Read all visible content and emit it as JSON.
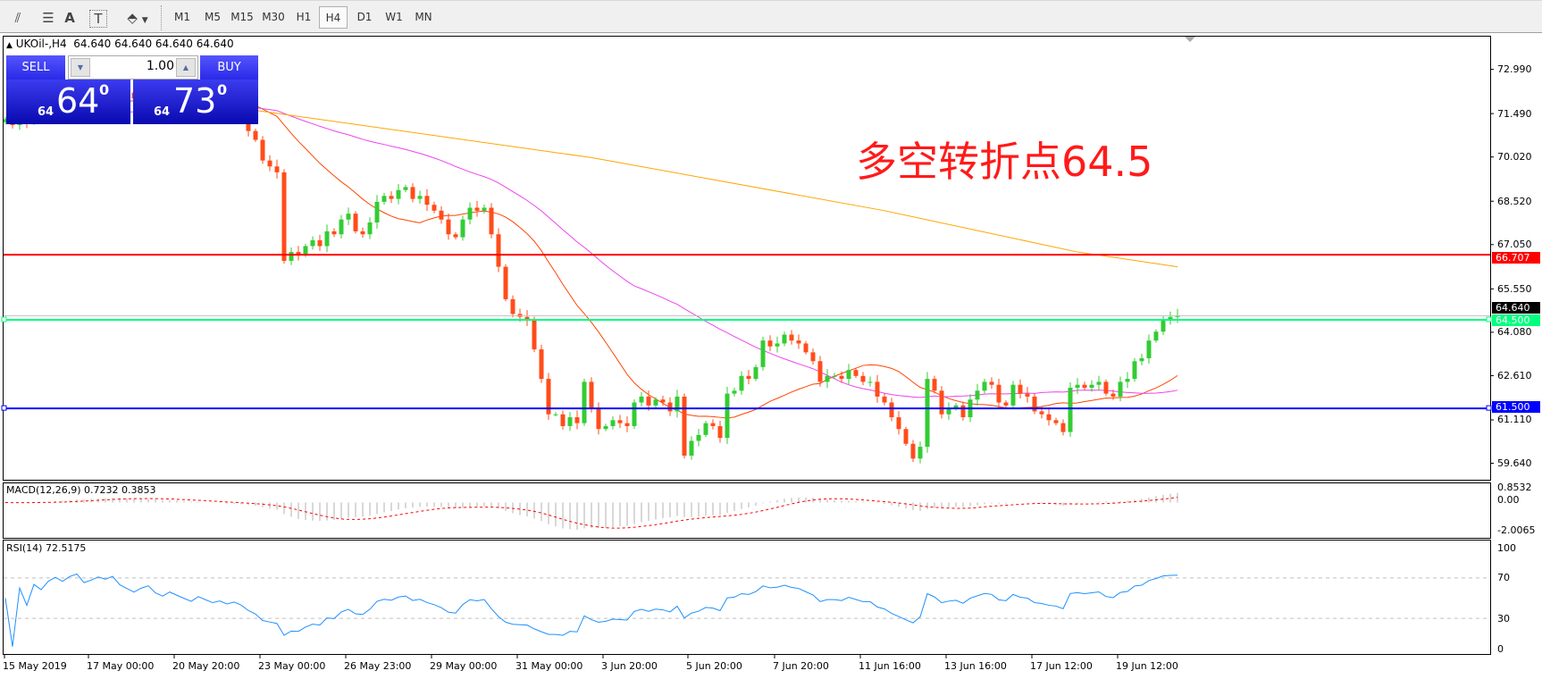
{
  "toolbar": {
    "tools": [
      {
        "name": "equidistant-channel-icon",
        "glyph": "⫽"
      },
      {
        "name": "fibonacci-icon",
        "glyph": "☰"
      },
      {
        "name": "text-icon",
        "glyph": "A"
      },
      {
        "name": "text-label-icon",
        "glyph": "T"
      },
      {
        "name": "arrows-icon",
        "glyph": "⬘"
      }
    ],
    "periods": [
      "M1",
      "M5",
      "M15",
      "M30",
      "H1",
      "H4",
      "D1",
      "W1",
      "MN"
    ],
    "active_period": "H4"
  },
  "chart": {
    "title": "UKOil-,H4  64.640 64.640 64.640 64.640",
    "annotation": "多空转折点64.5",
    "annotation_color": "#ff1a1a"
  },
  "trade_panel": {
    "sell_label": "SELL",
    "buy_label": "BUY",
    "lot": "1.00",
    "sell_price": {
      "prefix": "64",
      "big": "64",
      "sup": "0"
    },
    "buy_price": {
      "prefix": "64",
      "big": "73",
      "sup": "0"
    }
  },
  "chart_data": [
    {
      "type": "candlestick",
      "symbol": "UKOil-",
      "timeframe": "H4",
      "y_ticks": [
        "72.990",
        "71.490",
        "70.020",
        "68.520",
        "67.050",
        "65.550",
        "64.080",
        "62.610",
        "61.110",
        "59.640"
      ],
      "x_tick_labels": [
        "15 May 2019",
        "17 May 00:00",
        "20 May 20:00",
        "23 May 00:00",
        "26 May 23:00",
        "29 May 00:00",
        "31 May 00:00",
        "3 Jun 20:00",
        "5 Jun 20:00",
        "7 Jun 20:00",
        "11 Jun 16:00",
        "13 Jun 16:00",
        "17 Jun 12:00",
        "19 Jun 12:00"
      ],
      "close": [
        71.3,
        71.1,
        71.4,
        71.2,
        71.6,
        71.5,
        71.8,
        72.0,
        71.9,
        72.2,
        72.4,
        72.1,
        72.3,
        72.6,
        72.5,
        72.8,
        72.4,
        72.2,
        72.0,
        72.3,
        72.5,
        72.1,
        71.9,
        72.2,
        72.0,
        71.8,
        71.6,
        71.9,
        71.7,
        71.5,
        71.6,
        71.4,
        71.5,
        71.3,
        70.9,
        70.6,
        69.9,
        69.7,
        69.5,
        66.5,
        66.8,
        66.7,
        67.0,
        67.2,
        67.0,
        67.5,
        67.4,
        67.9,
        68.1,
        67.5,
        67.4,
        67.8,
        68.5,
        68.7,
        68.6,
        68.9,
        69.0,
        68.6,
        68.7,
        68.4,
        68.2,
        67.9,
        67.4,
        67.3,
        67.9,
        68.3,
        68.2,
        68.3,
        67.4,
        66.3,
        65.2,
        64.7,
        64.6,
        64.5,
        63.5,
        62.5,
        61.3,
        61.3,
        60.9,
        61.2,
        61.0,
        62.4,
        61.5,
        60.8,
        60.9,
        61.1,
        61.0,
        60.9,
        61.7,
        61.9,
        61.6,
        61.8,
        61.7,
        61.4,
        61.9,
        59.9,
        60.4,
        60.6,
        61.0,
        60.9,
        60.5,
        62.0,
        62.1,
        62.6,
        62.5,
        62.9,
        63.8,
        63.6,
        63.7,
        64.0,
        63.8,
        63.7,
        63.4,
        63.1,
        62.4,
        62.6,
        62.6,
        62.5,
        62.8,
        62.6,
        62.4,
        62.4,
        61.9,
        61.7,
        61.2,
        60.8,
        60.3,
        59.8,
        60.2,
        62.5,
        62.1,
        61.3,
        61.5,
        61.6,
        61.2,
        61.8,
        62.1,
        62.4,
        62.3,
        61.7,
        61.6,
        62.3,
        62.0,
        61.9,
        61.4,
        61.3,
        61.1,
        61.0,
        60.7,
        62.2,
        62.3,
        62.2,
        62.3,
        62.4,
        62.0,
        61.9,
        62.4,
        62.5,
        63.1,
        63.2,
        63.8,
        64.1,
        64.5,
        64.6,
        64.64
      ],
      "ma_slow_points": [
        [
          35,
          71.6
        ],
        [
          82,
          70.0
        ],
        [
          123,
          68.2
        ],
        [
          150,
          66.8
        ],
        [
          164,
          66.3
        ]
      ],
      "colors": {
        "bull": "#33cc33",
        "bear": "#ff4c1a",
        "ma_fast": "#ff4500",
        "ma_mid": "#ee44ee",
        "ma_slow": "#ffa500"
      },
      "horizontal_lines": [
        {
          "price": 66.707,
          "label": "66.707",
          "color": "#ff0000"
        },
        {
          "price": 64.64,
          "label": "64.640",
          "color": "#000000"
        },
        {
          "price": 64.5,
          "label": "64.500",
          "color": "#00ff7f"
        },
        {
          "price": 61.5,
          "label": "61.500",
          "color": "#0000ff"
        }
      ]
    },
    {
      "type": "macd",
      "label": "MACD(12,26,9) 0.7232 0.3853",
      "y_ticks": [
        "0.8532",
        "0.00",
        "-2.0065"
      ],
      "colors": {
        "histogram": "#b0b0b0",
        "signal": "#ff0000"
      }
    },
    {
      "type": "rsi",
      "label": "RSI(14) 72.5175",
      "y_ticks": [
        "100",
        "70",
        "30",
        "0"
      ],
      "levels": [
        70,
        30
      ],
      "color": "#1e90ff"
    }
  ]
}
